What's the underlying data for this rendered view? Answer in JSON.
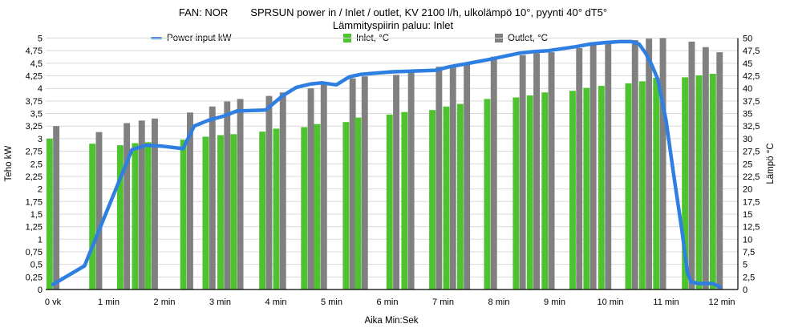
{
  "chart_data": {
    "type": "combo: bar (temperatures) + line (power)",
    "title_left": "FAN: NOR",
    "title_right": "SPRSUN power in / Inlet / outlet, KV 2100 l/h, ulkolämpö 10°, pyynti 40° dT5°",
    "subtitle": "Lämmityspiirin paluu: Inlet",
    "legend": [
      {
        "label": "Power input kW",
        "marker": "line",
        "color": "#2e7fe1"
      },
      {
        "label": "Inlet, °C",
        "marker": "square",
        "color": "#4fc32f"
      },
      {
        "label": "Outlet, °C",
        "marker": "square",
        "color": "#808080"
      }
    ],
    "grid": {
      "horizontal": true,
      "vertical": false,
      "color": "#d9d9d9"
    },
    "x_axis": {
      "title": "Aika Min:Sek",
      "tick_labels": [
        "0 vk",
        "1 min",
        "2 min",
        "3 min",
        "4 min",
        "5 min",
        "6 min",
        "7 min",
        "8 min",
        "9 min",
        "10 min",
        "11 min",
        "12 min"
      ],
      "tick_minutes": [
        0,
        1,
        2,
        3,
        4,
        5,
        6,
        7,
        8,
        9,
        10,
        11,
        12
      ]
    },
    "y_left_axis": {
      "title": "Teho kW",
      "min": 0,
      "max": 5,
      "step": 0.25,
      "tick_labels": [
        "0",
        "0,25",
        "0,5",
        "0,75",
        "1",
        "1,25",
        "1,5",
        "1,75",
        "2",
        "2,25",
        "2,5",
        "2,75",
        "3",
        "3,25",
        "3,5",
        "3,75",
        "4",
        "4,25",
        "4,5",
        "4,75",
        "5"
      ]
    },
    "y_right_axis": {
      "title": "Lämpö °C",
      "min": 0,
      "max": 50,
      "step": 2.5,
      "tick_labels": [
        "0",
        "2,5",
        "5",
        "7,5",
        "10",
        "12,5",
        "15",
        "17,5",
        "20",
        "22,5",
        "25",
        "27,5",
        "30",
        "32,5",
        "35",
        "37,5",
        "40",
        "42,5",
        "45",
        "47,5",
        "50"
      ]
    },
    "series": {
      "bars": {
        "time_sec": [
          0,
          46,
          76,
          92,
          106,
          144,
          168,
          184,
          198,
          229,
          244,
          274,
          288,
          319,
          332,
          366,
          382,
          412,
          427,
          442,
          471,
          502,
          517,
          533,
          563,
          578,
          594,
          623,
          638,
          653,
          684,
          699,
          714
        ],
        "inlet_c": [
          30.0,
          29.0,
          28.7,
          29.1,
          29.3,
          29.8,
          30.4,
          30.7,
          30.9,
          31.4,
          32.0,
          32.3,
          32.9,
          33.3,
          34.2,
          34.8,
          35.3,
          35.7,
          36.4,
          36.9,
          37.9,
          38.2,
          38.6,
          39.2,
          39.5,
          40.1,
          40.5,
          41.0,
          41.4,
          42.1,
          42.2,
          42.6,
          42.9
        ],
        "outlet_c": [
          32.5,
          31.3,
          33.1,
          33.6,
          34.0,
          35.2,
          36.4,
          37.4,
          37.9,
          38.5,
          39.2,
          40.0,
          41.1,
          42.0,
          42.4,
          42.7,
          43.3,
          44.3,
          44.5,
          44.7,
          46.3,
          46.6,
          47.0,
          47.2,
          48.0,
          48.8,
          49.1,
          49.6,
          49.9,
          50.0,
          49.3,
          48.2,
          47.2
        ]
      },
      "power_line": {
        "time_sec": [
          0,
          34,
          70,
          85,
          100,
          118,
          140,
          152,
          168,
          184,
          198,
          229,
          247,
          262,
          278,
          290,
          305,
          319,
          332,
          352,
          366,
          382,
          412,
          427,
          442,
          471,
          502,
          517,
          533,
          563,
          578,
          594,
          610,
          623,
          631,
          638,
          645,
          651,
          660,
          668,
          677,
          683,
          687,
          695,
          710,
          718
        ],
        "kw": [
          0.1,
          0.47,
          2.1,
          2.78,
          2.87,
          2.85,
          2.8,
          3.25,
          3.37,
          3.45,
          3.55,
          3.57,
          3.85,
          4.02,
          4.09,
          4.11,
          4.07,
          4.23,
          4.28,
          4.31,
          4.33,
          4.34,
          4.36,
          4.43,
          4.48,
          4.58,
          4.7,
          4.73,
          4.75,
          4.83,
          4.88,
          4.91,
          4.93,
          4.93,
          4.88,
          4.7,
          4.45,
          4.18,
          3.36,
          2.3,
          1.18,
          0.33,
          0.15,
          0.12,
          0.12,
          0.05
        ]
      }
    }
  }
}
